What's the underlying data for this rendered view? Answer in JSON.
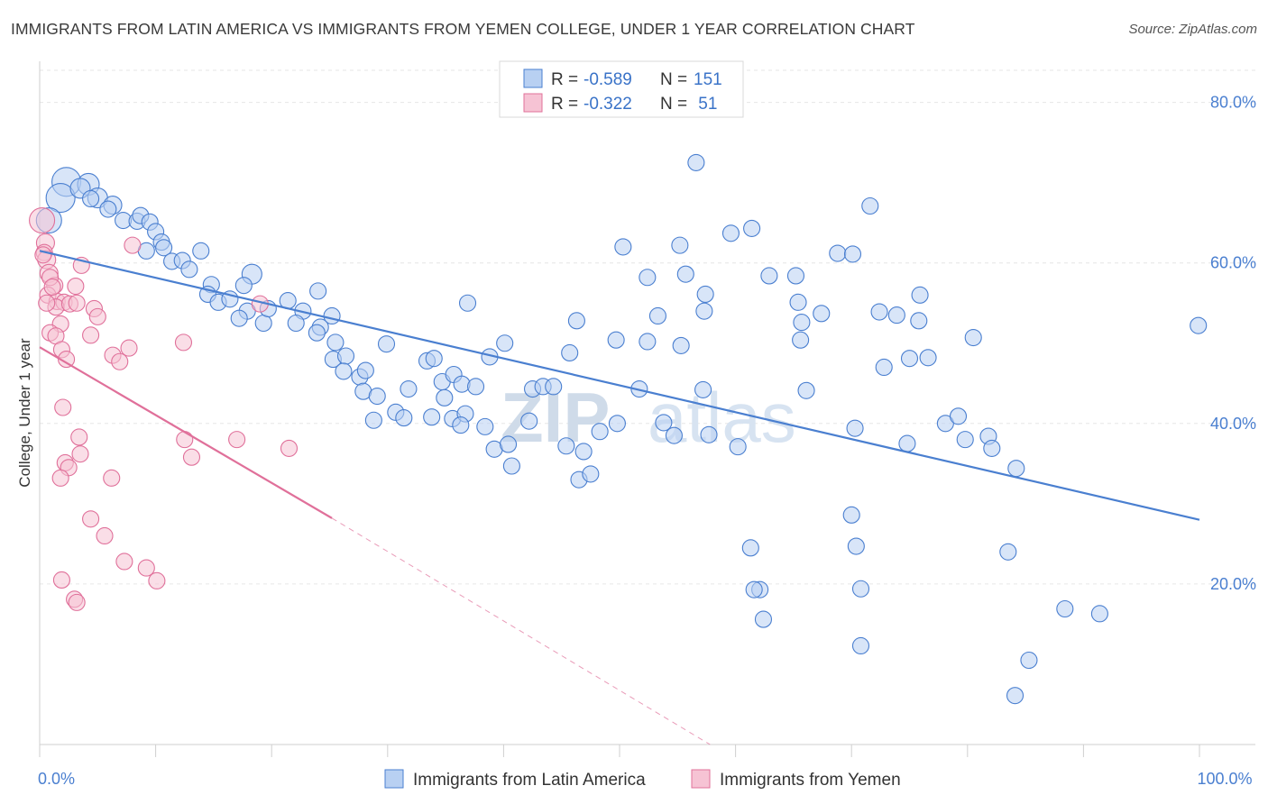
{
  "title": "IMMIGRANTS FROM LATIN AMERICA VS IMMIGRANTS FROM YEMEN COLLEGE, UNDER 1 YEAR CORRELATION CHART",
  "source": "Source: ZipAtlas.com",
  "watermark": {
    "zip": "ZIP",
    "atlas": "atlas"
  },
  "legend_stats": [
    {
      "r_label": "R =",
      "r_value": "-0.589",
      "n_label": "N =",
      "n_value": "151",
      "color": "#4a7fd0",
      "fill": "#b8d0f2"
    },
    {
      "r_label": "R =",
      "r_value": "-0.322",
      "n_label": "N =",
      "n_value": " 51",
      "color": "#e0709a",
      "fill": "#f6c3d4"
    }
  ],
  "chart_data": {
    "type": "scatter",
    "xlabel": "",
    "ylabel": "College, Under 1 year",
    "xlim": [
      0,
      100
    ],
    "ylim": [
      0,
      84
    ],
    "x_tick_labels": [
      {
        "value": 0,
        "label": "0.0%"
      },
      {
        "value": 100,
        "label": "100.0%"
      }
    ],
    "y_tick_labels": [
      {
        "value": 20,
        "label": "20.0%"
      },
      {
        "value": 40,
        "label": "40.0%"
      },
      {
        "value": 60,
        "label": "60.0%"
      },
      {
        "value": 80,
        "label": "80.0%"
      }
    ],
    "grid": true,
    "legend_position": "bottom-center",
    "series": [
      {
        "name": "Immigrants from Latin America",
        "color": "#4a7fd0",
        "fill": "#b8d0f2",
        "trend": {
          "x": [
            0,
            100
          ],
          "y": [
            61.5,
            28.0
          ],
          "dashed_extension": false
        },
        "points": [
          [
            2.3,
            70.1,
            16
          ],
          [
            4.2,
            69.8,
            12
          ],
          [
            1.8,
            68.1,
            16
          ],
          [
            3.5,
            69.3,
            11
          ],
          [
            5.0,
            68.1,
            11
          ],
          [
            4.4,
            68.0,
            9
          ],
          [
            6.3,
            67.2,
            10
          ],
          [
            5.9,
            66.7,
            9
          ],
          [
            0.8,
            65.3,
            14
          ],
          [
            7.2,
            65.3,
            9
          ],
          [
            8.4,
            65.2,
            9
          ],
          [
            8.7,
            65.9,
            9
          ],
          [
            9.5,
            65.1,
            9
          ],
          [
            10.0,
            63.9,
            9
          ],
          [
            10.5,
            62.6,
            9
          ],
          [
            10.7,
            61.9,
            9
          ],
          [
            9.2,
            61.5,
            9
          ],
          [
            11.4,
            60.2,
            9
          ],
          [
            13.9,
            61.5,
            9
          ],
          [
            12.3,
            60.3,
            9
          ],
          [
            12.9,
            59.2,
            9
          ],
          [
            14.8,
            57.3,
            9
          ],
          [
            18.3,
            58.6,
            11
          ],
          [
            17.6,
            57.2,
            9
          ],
          [
            14.5,
            56.1,
            9
          ],
          [
            15.4,
            55.1,
            9
          ],
          [
            16.4,
            55.5,
            9
          ],
          [
            17.9,
            54.0,
            9
          ],
          [
            17.2,
            53.1,
            9
          ],
          [
            19.3,
            52.5,
            9
          ],
          [
            19.7,
            54.3,
            9
          ],
          [
            21.4,
            55.3,
            9
          ],
          [
            22.7,
            54.0,
            9
          ],
          [
            24.0,
            56.5,
            9
          ],
          [
            25.2,
            53.4,
            9
          ],
          [
            24.2,
            52.0,
            9
          ],
          [
            22.1,
            52.5,
            9
          ],
          [
            23.9,
            51.3,
            9
          ],
          [
            25.5,
            50.1,
            9
          ],
          [
            25.3,
            48.0,
            9
          ],
          [
            26.4,
            48.4,
            9
          ],
          [
            26.2,
            46.5,
            9
          ],
          [
            27.6,
            45.8,
            9
          ],
          [
            28.1,
            46.6,
            9
          ],
          [
            27.9,
            44.0,
            9
          ],
          [
            29.1,
            43.4,
            9
          ],
          [
            28.8,
            40.4,
            9
          ],
          [
            29.9,
            49.9,
            9
          ],
          [
            30.7,
            41.4,
            9
          ],
          [
            31.4,
            40.7,
            9
          ],
          [
            33.8,
            40.8,
            9
          ],
          [
            35.6,
            40.6,
            9
          ],
          [
            34.7,
            45.2,
            9
          ],
          [
            31.8,
            44.3,
            9
          ],
          [
            33.4,
            47.8,
            9
          ],
          [
            34.0,
            48.1,
            9
          ],
          [
            35.7,
            46.1,
            9
          ],
          [
            36.4,
            44.9,
            9
          ],
          [
            34.9,
            43.2,
            9
          ],
          [
            36.7,
            41.2,
            9
          ],
          [
            36.3,
            39.8,
            9
          ],
          [
            37.6,
            44.6,
            9
          ],
          [
            38.8,
            48.3,
            9
          ],
          [
            36.9,
            55.0,
            9
          ],
          [
            40.1,
            50.0,
            9
          ],
          [
            38.4,
            39.6,
            9
          ],
          [
            39.2,
            36.8,
            9
          ],
          [
            40.4,
            37.4,
            9
          ],
          [
            40.7,
            34.7,
            9
          ],
          [
            42.2,
            40.3,
            9
          ],
          [
            42.5,
            44.3,
            9
          ],
          [
            43.4,
            44.6,
            9
          ],
          [
            44.3,
            44.6,
            9
          ],
          [
            45.7,
            48.8,
            9
          ],
          [
            46.3,
            52.8,
            9
          ],
          [
            45.4,
            37.2,
            9
          ],
          [
            46.9,
            36.5,
            9
          ],
          [
            46.5,
            33.0,
            9
          ],
          [
            47.5,
            33.7,
            9
          ],
          [
            48.3,
            39.0,
            9
          ],
          [
            49.7,
            50.4,
            9
          ],
          [
            49.8,
            40.0,
            9
          ],
          [
            52.4,
            50.2,
            9
          ],
          [
            51.7,
            44.3,
            9
          ],
          [
            53.8,
            40.1,
            9
          ],
          [
            54.7,
            38.5,
            9
          ],
          [
            52.4,
            58.2,
            9
          ],
          [
            53.3,
            53.4,
            9
          ],
          [
            50.3,
            62.0,
            9
          ],
          [
            55.2,
            62.2,
            9
          ],
          [
            55.7,
            58.6,
            9
          ],
          [
            55.3,
            49.7,
            9
          ],
          [
            57.3,
            54.0,
            9
          ],
          [
            57.4,
            56.1,
            9
          ],
          [
            57.2,
            44.2,
            9
          ],
          [
            57.7,
            38.6,
            9
          ],
          [
            60.2,
            37.1,
            9
          ],
          [
            59.6,
            63.7,
            9
          ],
          [
            61.4,
            64.3,
            9
          ],
          [
            61.3,
            24.5,
            9
          ],
          [
            62.1,
            19.3,
            9
          ],
          [
            62.4,
            15.6,
            9
          ],
          [
            61.6,
            19.3,
            9
          ],
          [
            56.6,
            72.5,
            9
          ],
          [
            62.9,
            58.4,
            9
          ],
          [
            65.2,
            58.4,
            9
          ],
          [
            65.4,
            55.1,
            9
          ],
          [
            65.7,
            52.6,
            9
          ],
          [
            65.6,
            50.4,
            9
          ],
          [
            67.4,
            53.7,
            9
          ],
          [
            66.1,
            44.1,
            9
          ],
          [
            68.8,
            61.2,
            9
          ],
          [
            70.1,
            61.1,
            9
          ],
          [
            71.6,
            67.1,
            9
          ],
          [
            70.3,
            39.4,
            9
          ],
          [
            70.0,
            28.6,
            9
          ],
          [
            70.4,
            24.7,
            9
          ],
          [
            70.8,
            19.4,
            9
          ],
          [
            70.8,
            12.3,
            9
          ],
          [
            72.4,
            53.9,
            9
          ],
          [
            72.8,
            47.0,
            9
          ],
          [
            73.9,
            53.5,
            9
          ],
          [
            75.0,
            48.1,
            9
          ],
          [
            75.8,
            52.8,
            9
          ],
          [
            75.9,
            56.0,
            9
          ],
          [
            76.6,
            48.2,
            9
          ],
          [
            74.8,
            37.5,
            9
          ],
          [
            78.1,
            40.0,
            9
          ],
          [
            79.2,
            40.9,
            9
          ],
          [
            79.8,
            38.0,
            9
          ],
          [
            80.5,
            50.7,
            9
          ],
          [
            81.8,
            38.4,
            9
          ],
          [
            82.1,
            36.9,
            9
          ],
          [
            83.5,
            24.0,
            9
          ],
          [
            84.2,
            34.4,
            9
          ],
          [
            85.3,
            10.5,
            9
          ],
          [
            84.1,
            6.1,
            9
          ],
          [
            88.4,
            16.9,
            9
          ],
          [
            91.4,
            16.3,
            9
          ],
          [
            99.9,
            52.2,
            9
          ]
        ]
      },
      {
        "name": "Immigrants from Yemen",
        "color": "#e0709a",
        "fill": "#f6c3d4",
        "trend": {
          "x": [
            0,
            25.2
          ],
          "y": [
            49.5,
            28.2
          ],
          "dashed_extension": true,
          "dash_to": [
            57.8,
            0
          ]
        },
        "points": [
          [
            0.2,
            65.3,
            14
          ],
          [
            0.5,
            62.5,
            10
          ],
          [
            0.4,
            61.3,
            9
          ],
          [
            0.6,
            60.4,
            10
          ],
          [
            0.8,
            58.7,
            10
          ],
          [
            1.3,
            57.2,
            9
          ],
          [
            0.7,
            56.0,
            9
          ],
          [
            1.5,
            55.2,
            9
          ],
          [
            2.1,
            55.1,
            9
          ],
          [
            1.4,
            54.5,
            9
          ],
          [
            1.8,
            52.4,
            9
          ],
          [
            0.9,
            51.3,
            9
          ],
          [
            2.6,
            54.9,
            9
          ],
          [
            3.1,
            57.1,
            9
          ],
          [
            3.2,
            55.0,
            9
          ],
          [
            3.6,
            59.7,
            9
          ],
          [
            1.4,
            50.9,
            9
          ],
          [
            1.9,
            49.2,
            9
          ],
          [
            2.3,
            48.0,
            9
          ],
          [
            2.0,
            42.0,
            9
          ],
          [
            3.4,
            38.3,
            9
          ],
          [
            3.5,
            36.2,
            9
          ],
          [
            2.2,
            35.1,
            9
          ],
          [
            2.5,
            34.5,
            9
          ],
          [
            1.8,
            33.2,
            9
          ],
          [
            4.4,
            51.0,
            9
          ],
          [
            4.7,
            54.3,
            9
          ],
          [
            5.0,
            53.3,
            9
          ],
          [
            6.3,
            48.5,
            9
          ],
          [
            6.9,
            47.7,
            9
          ],
          [
            7.7,
            49.4,
            9
          ],
          [
            8.0,
            62.2,
            9
          ],
          [
            6.2,
            33.2,
            9
          ],
          [
            4.4,
            28.1,
            9
          ],
          [
            5.6,
            26.0,
            9
          ],
          [
            7.3,
            22.8,
            9
          ],
          [
            9.2,
            22.0,
            9
          ],
          [
            10.1,
            20.4,
            9
          ],
          [
            1.9,
            20.5,
            9
          ],
          [
            3.0,
            18.1,
            9
          ],
          [
            3.2,
            17.7,
            9
          ],
          [
            12.4,
            50.1,
            9
          ],
          [
            12.5,
            38.0,
            9
          ],
          [
            13.1,
            35.8,
            9
          ],
          [
            17.0,
            38.0,
            9
          ],
          [
            19.0,
            54.9,
            9
          ],
          [
            21.5,
            36.9,
            9
          ],
          [
            0.3,
            61.0,
            9
          ],
          [
            0.9,
            58.2,
            9
          ],
          [
            1.1,
            57.0,
            9
          ],
          [
            0.6,
            55.0,
            9
          ]
        ]
      }
    ]
  }
}
